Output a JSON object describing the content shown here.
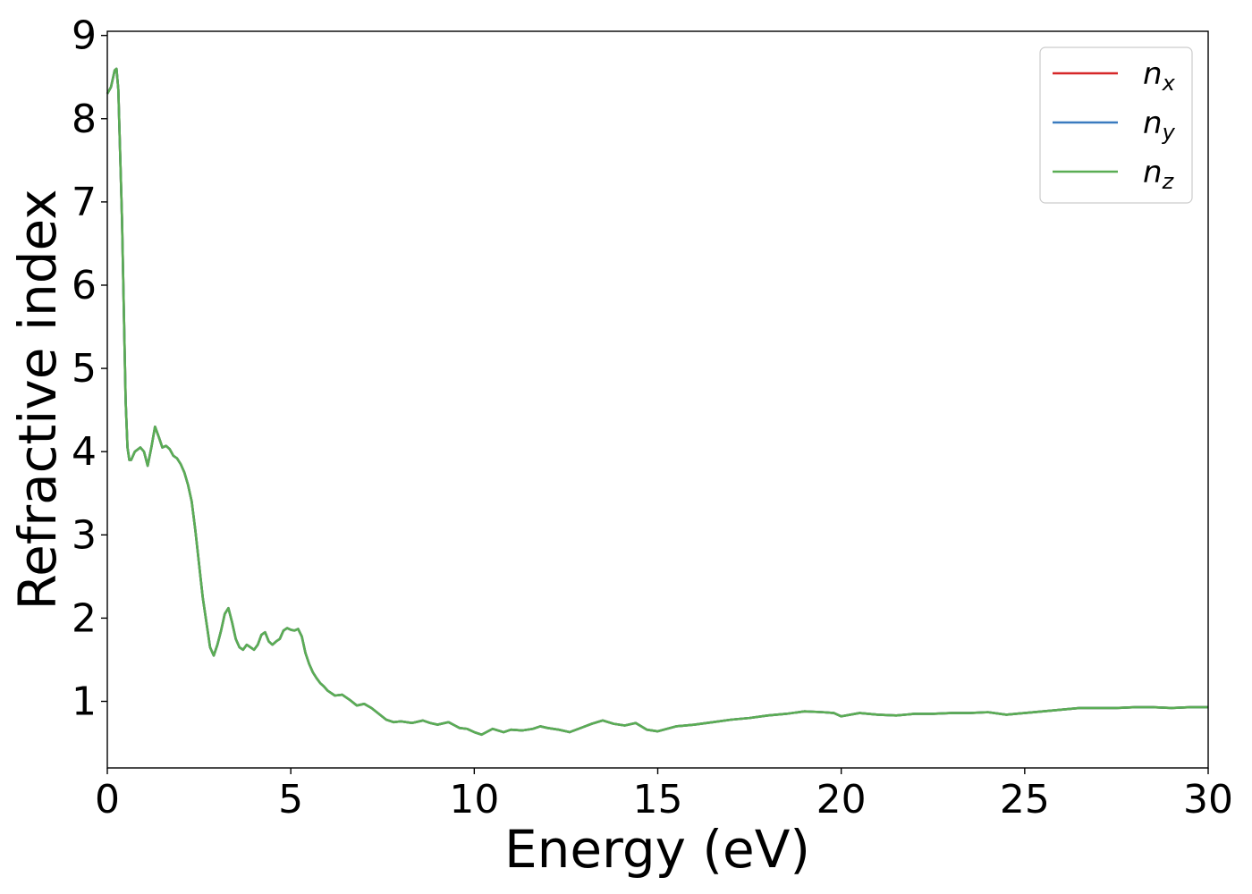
{
  "chart_data": {
    "type": "line",
    "title": "",
    "xlabel": "Energy (eV)",
    "ylabel": "Refractive index",
    "xlim": [
      0,
      30
    ],
    "ylim": [
      0.2,
      9.05
    ],
    "xticks": [
      0,
      5,
      10,
      15,
      20,
      25,
      30
    ],
    "yticks": [
      1,
      2,
      3,
      4,
      5,
      6,
      7,
      8,
      9
    ],
    "grid": false,
    "legend_position": "top-right",
    "series": [
      {
        "name": "n",
        "subscript": "x",
        "color": "#d62728"
      },
      {
        "name": "n",
        "subscript": "y",
        "color": "#3a7bbf"
      },
      {
        "name": "n",
        "subscript": "z",
        "color": "#5aad54"
      }
    ],
    "shared_curve": {
      "x": [
        0,
        0.1,
        0.2,
        0.25,
        0.3,
        0.4,
        0.5,
        0.55,
        0.6,
        0.65,
        0.75,
        0.9,
        1.0,
        1.1,
        1.2,
        1.3,
        1.4,
        1.5,
        1.6,
        1.7,
        1.8,
        1.9,
        2.0,
        2.1,
        2.2,
        2.3,
        2.4,
        2.5,
        2.6,
        2.7,
        2.8,
        2.9,
        3.0,
        3.1,
        3.2,
        3.3,
        3.4,
        3.5,
        3.6,
        3.7,
        3.8,
        3.9,
        4.0,
        4.1,
        4.2,
        4.3,
        4.4,
        4.5,
        4.6,
        4.7,
        4.8,
        4.9,
        5.0,
        5.1,
        5.2,
        5.3,
        5.4,
        5.5,
        5.6,
        5.7,
        5.8,
        5.9,
        6.0,
        6.2,
        6.4,
        6.6,
        6.8,
        7.0,
        7.2,
        7.4,
        7.6,
        7.8,
        8.0,
        8.3,
        8.6,
        8.8,
        9.0,
        9.3,
        9.6,
        9.8,
        10.0,
        10.2,
        10.5,
        10.8,
        11.0,
        11.3,
        11.6,
        11.8,
        12.0,
        12.3,
        12.6,
        12.9,
        13.2,
        13.5,
        13.8,
        14.1,
        14.4,
        14.7,
        15.0,
        15.5,
        16.0,
        16.5,
        17.0,
        17.5,
        18.0,
        18.5,
        19.0,
        19.5,
        19.8,
        20.0,
        20.5,
        21.0,
        21.5,
        22.0,
        22.5,
        23.0,
        23.5,
        24.0,
        24.5,
        25.0,
        25.5,
        26.0,
        26.5,
        27.0,
        27.5,
        28.0,
        28.5,
        29.0,
        29.5,
        30.0
      ],
      "y": [
        8.3,
        8.38,
        8.58,
        8.6,
        8.35,
        6.8,
        4.6,
        4.05,
        3.9,
        3.9,
        4.0,
        4.05,
        4.0,
        3.83,
        4.05,
        4.3,
        4.18,
        4.05,
        4.07,
        4.03,
        3.95,
        3.92,
        3.85,
        3.75,
        3.6,
        3.4,
        3.05,
        2.65,
        2.25,
        1.95,
        1.65,
        1.55,
        1.68,
        1.85,
        2.05,
        2.12,
        1.95,
        1.75,
        1.65,
        1.62,
        1.68,
        1.65,
        1.62,
        1.68,
        1.8,
        1.83,
        1.72,
        1.68,
        1.72,
        1.75,
        1.85,
        1.88,
        1.86,
        1.85,
        1.87,
        1.78,
        1.58,
        1.45,
        1.35,
        1.28,
        1.22,
        1.18,
        1.13,
        1.07,
        1.08,
        1.02,
        0.95,
        0.97,
        0.92,
        0.85,
        0.78,
        0.75,
        0.76,
        0.74,
        0.77,
        0.74,
        0.72,
        0.75,
        0.68,
        0.67,
        0.63,
        0.6,
        0.67,
        0.63,
        0.66,
        0.65,
        0.67,
        0.7,
        0.68,
        0.66,
        0.63,
        0.68,
        0.73,
        0.77,
        0.73,
        0.71,
        0.74,
        0.66,
        0.64,
        0.7,
        0.72,
        0.75,
        0.78,
        0.8,
        0.83,
        0.85,
        0.88,
        0.87,
        0.86,
        0.82,
        0.86,
        0.84,
        0.83,
        0.85,
        0.85,
        0.86,
        0.86,
        0.87,
        0.84,
        0.86,
        0.88,
        0.9,
        0.92,
        0.92,
        0.92,
        0.93,
        0.93,
        0.92,
        0.93,
        0.93
      ]
    }
  }
}
